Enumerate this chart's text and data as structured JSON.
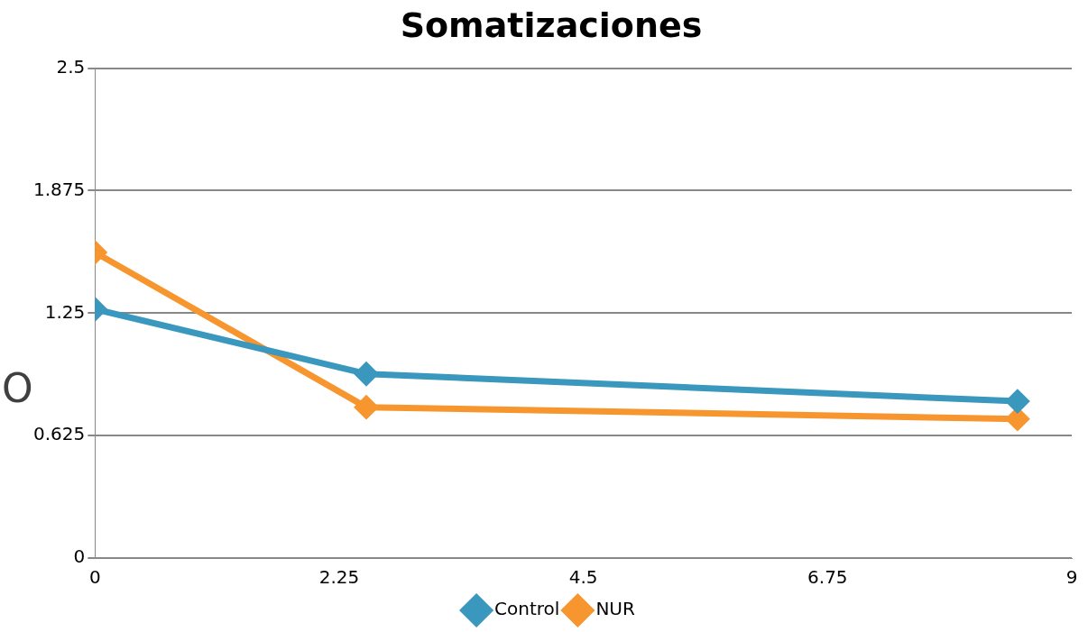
{
  "chart_data": {
    "type": "line",
    "title": "Somatizaciones",
    "x": [
      0,
      2.5,
      8.5
    ],
    "series": [
      {
        "name": "Control",
        "color": "#3a97bd",
        "values": [
          1.27,
          0.94,
          0.8
        ]
      },
      {
        "name": "NUR",
        "color": "#f7952f",
        "values": [
          1.56,
          0.77,
          0.71
        ]
      }
    ],
    "xlim": [
      0,
      9
    ],
    "xticks": [
      0,
      2.25,
      4.5,
      6.75,
      9
    ],
    "ylim": [
      0,
      2.5
    ],
    "yticks": [
      0,
      0.625,
      1.25,
      1.875,
      2.5
    ],
    "grid": "y",
    "legend": "bottom",
    "marker": "diamond",
    "line_style": "solid",
    "annotations": [
      "O"
    ]
  }
}
